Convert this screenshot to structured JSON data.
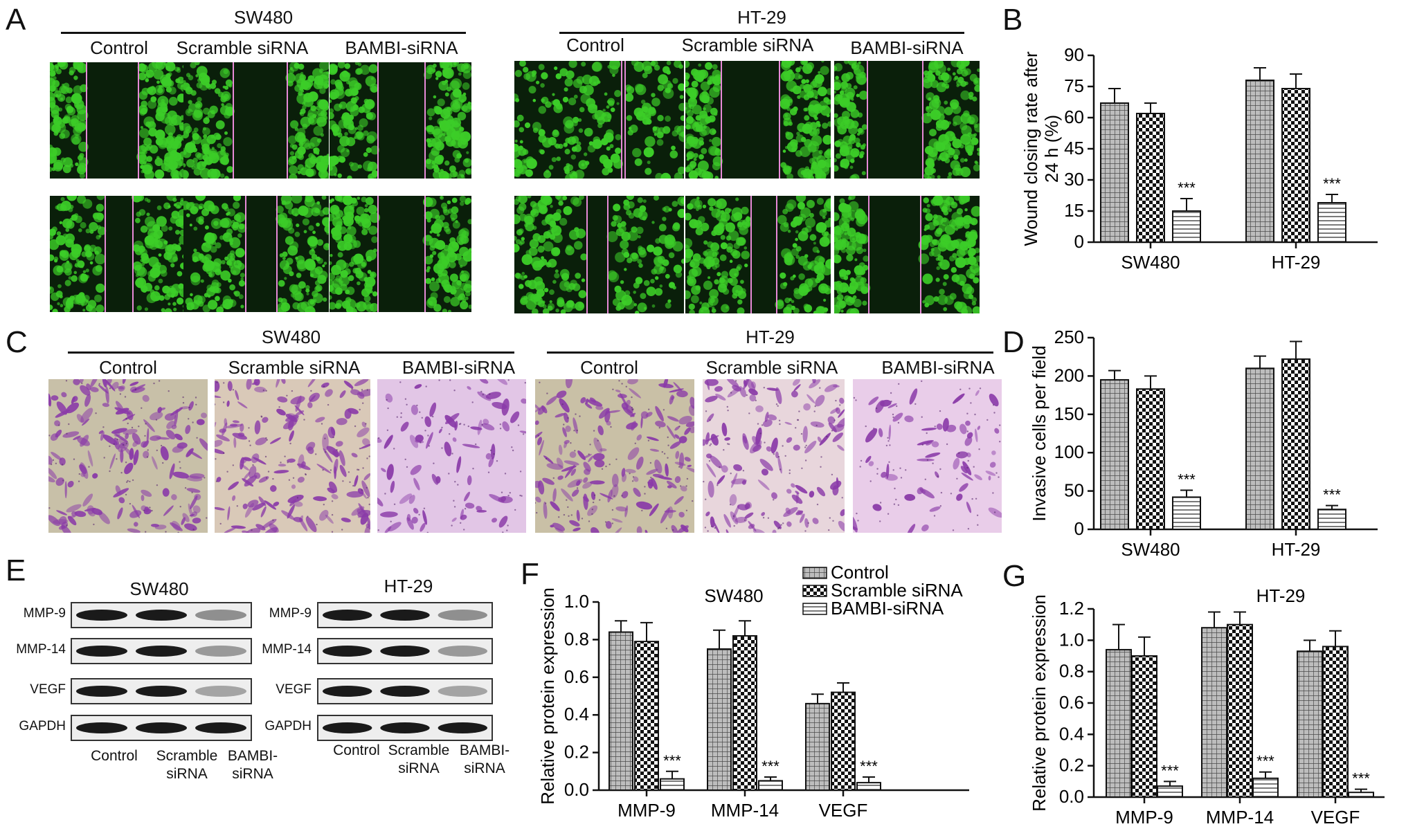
{
  "panels": {
    "A": {
      "letter": "A",
      "groups": [
        {
          "title": "SW480",
          "conditions": [
            "Control",
            "Scramble siRNA",
            "BAMBI-siRNA"
          ]
        },
        {
          "title": "HT-29",
          "conditions": [
            "Control",
            "Scramble siRNA",
            "BAMBI-siRNA"
          ]
        }
      ]
    },
    "B": {
      "letter": "B"
    },
    "C": {
      "letter": "C",
      "groups": [
        {
          "title": "SW480",
          "conditions": [
            "Control",
            "Scramble siRNA",
            "BAMBI-siRNA"
          ]
        },
        {
          "title": "HT-29",
          "conditions": [
            "Control",
            "Scramble siRNA",
            "BAMBI-siRNA"
          ]
        }
      ]
    },
    "D": {
      "letter": "D"
    },
    "E": {
      "letter": "E",
      "blots": [
        {
          "title": "SW480",
          "proteins": [
            "MMP-9",
            "MMP-14",
            "VEGF",
            "GAPDH"
          ],
          "lanes": [
            [
              "Control"
            ],
            [
              "Scramble",
              "siRNA"
            ],
            [
              "BAMBI-",
              "siRNA"
            ]
          ]
        },
        {
          "title": "HT-29",
          "proteins": [
            "MMP-9",
            "MMP-14",
            "VEGF",
            "GAPDH"
          ],
          "lanes": [
            [
              "Control"
            ],
            [
              "Scramble",
              "siRNA"
            ],
            [
              "BAMBI-",
              "siRNA"
            ]
          ]
        }
      ]
    },
    "F": {
      "letter": "F"
    },
    "G": {
      "letter": "G"
    }
  },
  "colors": {
    "bar_fill": "#ffffff",
    "bar_stroke": "#111111",
    "wound_cells": "#3ccd28",
    "wound_gap": "#0a1f0a",
    "wound_line": "#e88ad8",
    "stain": "#8a3aa8",
    "blot_band": "#1a1a1a"
  },
  "chart_data": [
    {
      "id": "B",
      "type": "bar",
      "title": "",
      "ylabel": "Wound closing rate after 24 h (%)",
      "ylim": [
        0,
        90
      ],
      "yticks": [
        0,
        15,
        30,
        45,
        60,
        75,
        90
      ],
      "categories": [
        "SW480",
        "HT-29"
      ],
      "series": [
        {
          "name": "Control",
          "pattern": "grid",
          "values": [
            67,
            78
          ],
          "errors": [
            7,
            6
          ]
        },
        {
          "name": "Scramble siRNA",
          "pattern": "check",
          "values": [
            62,
            74
          ],
          "errors": [
            5,
            7
          ]
        },
        {
          "name": "BAMBI-siRNA",
          "pattern": "hlines",
          "values": [
            15,
            19
          ],
          "errors": [
            6,
            4
          ]
        }
      ],
      "annotations": [
        "***",
        "***"
      ]
    },
    {
      "id": "D",
      "type": "bar",
      "title": "",
      "ylabel": "Invasive cells per field",
      "ylim": [
        0,
        250
      ],
      "yticks": [
        0,
        50,
        100,
        150,
        200,
        250
      ],
      "categories": [
        "SW480",
        "HT-29"
      ],
      "series": [
        {
          "name": "Control",
          "pattern": "grid",
          "values": [
            195,
            210
          ],
          "errors": [
            12,
            16
          ]
        },
        {
          "name": "Scramble siRNA",
          "pattern": "check",
          "values": [
            183,
            222
          ],
          "errors": [
            17,
            23
          ]
        },
        {
          "name": "BAMBI-siRNA",
          "pattern": "hlines",
          "values": [
            42,
            26
          ],
          "errors": [
            9,
            5
          ]
        }
      ],
      "annotations": [
        "***",
        "***"
      ]
    },
    {
      "id": "F",
      "type": "bar",
      "title": "SW480",
      "ylabel": "Relative protein expression",
      "ylim": [
        0,
        1.0
      ],
      "yticks": [
        "0.0",
        "0.2",
        "0.4",
        "0.6",
        "0.8",
        "1.0"
      ],
      "categories": [
        "MMP-9",
        "MMP-14",
        "VEGF"
      ],
      "legend_position": "top-right",
      "series": [
        {
          "name": "Control",
          "pattern": "grid",
          "values": [
            0.84,
            0.75,
            0.46
          ],
          "errors": [
            0.06,
            0.1,
            0.05
          ]
        },
        {
          "name": "Scramble siRNA",
          "pattern": "check",
          "values": [
            0.79,
            0.82,
            0.52
          ],
          "errors": [
            0.1,
            0.08,
            0.05
          ]
        },
        {
          "name": "BAMBI-siRNA",
          "pattern": "hlines",
          "values": [
            0.06,
            0.05,
            0.04
          ],
          "errors": [
            0.04,
            0.02,
            0.03
          ]
        }
      ],
      "annotations": [
        "***",
        "***",
        "***"
      ]
    },
    {
      "id": "G",
      "type": "bar",
      "title": "HT-29",
      "ylabel": "Relative protein expression",
      "ylim": [
        0,
        1.2
      ],
      "yticks": [
        "0.0",
        "0.2",
        "0.4",
        "0.6",
        "0.8",
        "1.0",
        "1.2"
      ],
      "categories": [
        "MMP-9",
        "MMP-14",
        "VEGF"
      ],
      "series": [
        {
          "name": "Control",
          "pattern": "grid",
          "values": [
            0.94,
            1.08,
            0.93
          ],
          "errors": [
            0.16,
            0.1,
            0.07
          ]
        },
        {
          "name": "Scramble siRNA",
          "pattern": "check",
          "values": [
            0.9,
            1.1,
            0.96
          ],
          "errors": [
            0.12,
            0.08,
            0.1
          ]
        },
        {
          "name": "BAMBI-siRNA",
          "pattern": "hlines",
          "values": [
            0.07,
            0.12,
            0.03
          ],
          "errors": [
            0.03,
            0.04,
            0.02
          ]
        }
      ],
      "annotations": [
        "***",
        "***",
        "***"
      ]
    }
  ]
}
